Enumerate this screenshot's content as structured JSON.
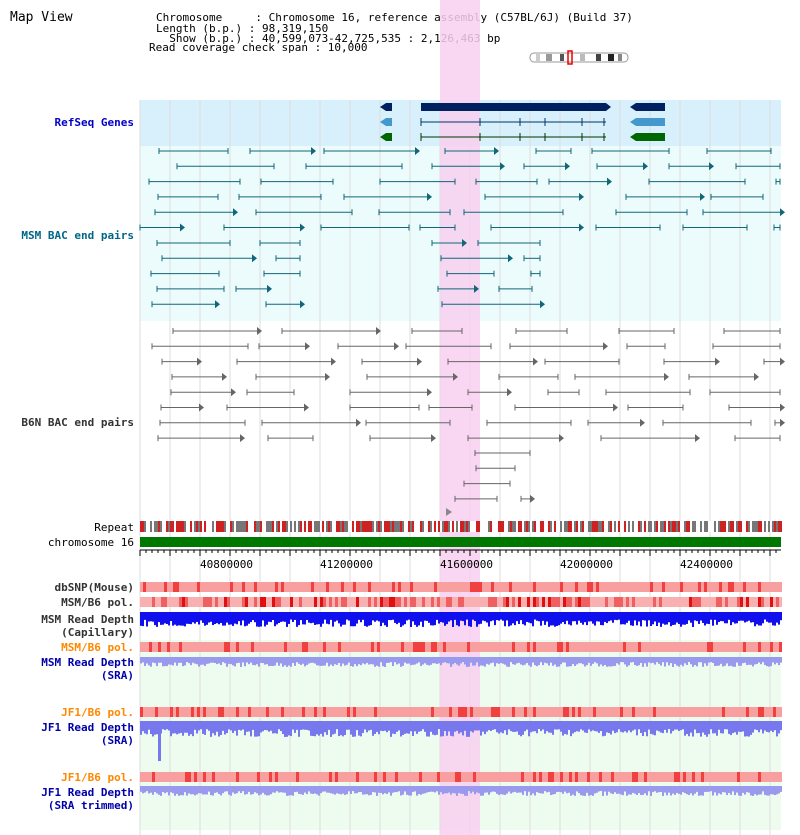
{
  "title": "Map View",
  "info": {
    "chromosome": "Chromosome     : Chromosome 16, reference assembly (C57BL/6J) (Build 37)",
    "length": "Length (b.p.) : 98,319,150",
    "show": "  Show (b.p.) : 40,599,073-42,725,535 : 2,126,463 bp",
    "coverage": "Read coverage check span : 10,000"
  },
  "tracks": {
    "refseq": "RefSeq Genes",
    "msm_bac": "MSM BAC end pairs",
    "b6n_bac": "B6N BAC end pairs",
    "repeat": "Repeat",
    "chromosome": "chromosome 16",
    "dbsnp": "dbSNP(Mouse)",
    "msm_b6_pol": "MSM/B6 pol.",
    "msm_depth_cap_1": "MSM Read Depth",
    "msm_depth_cap_2": "(Capillary)",
    "msm_b6_pol_2": "MSM/B6 pol.",
    "msm_depth_sra_1": "MSM Read Depth",
    "msm_depth_sra_2": "(SRA)",
    "jf1_b6_pol": "JF1/B6 pol.",
    "jf1_depth_sra_1": "JF1 Read Depth",
    "jf1_depth_sra_2": "(SRA)",
    "jf1_b6_pol_2": "JF1/B6 pol.",
    "jf1_depth_trim_1": "JF1 Read Depth",
    "jf1_depth_trim_2": "(SRA trimmed)"
  },
  "axis": {
    "ticks": [
      "40800000",
      "41200000",
      "41600000",
      "42000000",
      "42400000"
    ]
  },
  "colors": {
    "refseq_label": "#0000cc",
    "msm_label": "#006688",
    "b6n_label": "#333333",
    "orange_label": "#ff8800",
    "blue_label": "#0000aa",
    "highlight": "#f8d0f0",
    "chromosome_bar": "#007700"
  }
}
